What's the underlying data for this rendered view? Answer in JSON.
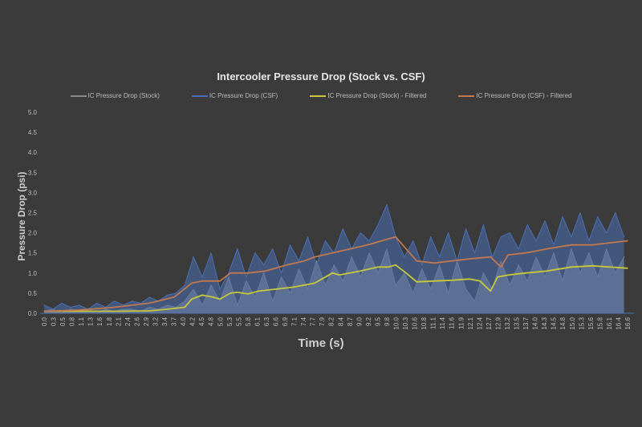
{
  "chart_data": {
    "type": "line",
    "title": "Intercooler Pressure Drop (Stock vs. CSF)",
    "xlabel": "Time (s)",
    "ylabel": "Pressure Drop (psi)",
    "ylim": [
      0,
      5
    ],
    "xlim": [
      0,
      16.6
    ],
    "yticks": [
      "0.0",
      "0.5",
      "1.0",
      "1.5",
      "2.0",
      "2.5",
      "3.0",
      "3.5",
      "4.0",
      "4.5",
      "5.0"
    ],
    "xticks": [
      "0.0",
      "0.3",
      "0.5",
      "0.8",
      "1.1",
      "1.3",
      "1.6",
      "1.8",
      "2.1",
      "2.4",
      "2.6",
      "2.9",
      "3.2",
      "3.4",
      "3.7",
      "4.0",
      "4.2",
      "4.5",
      "4.8",
      "5.0",
      "5.3",
      "5.5",
      "5.8",
      "6.1",
      "6.3",
      "6.6",
      "6.9",
      "7.1",
      "7.4",
      "7.7",
      "7.9",
      "8.2",
      "8.4",
      "8.7",
      "9.0",
      "9.2",
      "9.5",
      "9.8",
      "10.0",
      "10.3",
      "10.6",
      "10.8",
      "11.1",
      "11.4",
      "11.6",
      "11.9",
      "12.1",
      "12.4",
      "12.7",
      "12.9",
      "13.2",
      "13.5",
      "13.7",
      "14.0",
      "14.3",
      "14.5",
      "14.8",
      "15.0",
      "15.3",
      "15.6",
      "15.8",
      "16.1",
      "16.4",
      "16.6"
    ],
    "legend_position": "top",
    "grid": false,
    "series": [
      {
        "name": "IC Pressure Drop (Stock)",
        "color": "#8a8a8a",
        "x": [
          0,
          0.25,
          0.5,
          0.75,
          1,
          1.25,
          1.5,
          1.75,
          2,
          2.25,
          2.5,
          2.75,
          3,
          3.25,
          3.5,
          3.75,
          4,
          4.25,
          4.5,
          4.75,
          5,
          5.25,
          5.5,
          5.75,
          6,
          6.25,
          6.5,
          6.75,
          7,
          7.25,
          7.5,
          7.75,
          8,
          8.25,
          8.5,
          8.75,
          9,
          9.25,
          9.5,
          9.75,
          10,
          10.25,
          10.5,
          10.75,
          11,
          11.25,
          11.5,
          11.75,
          12,
          12.25,
          12.5,
          12.75,
          13,
          13.25,
          13.5,
          13.75,
          14,
          14.25,
          14.5,
          14.75,
          15,
          15.25,
          15.5,
          15.75,
          16,
          16.25,
          16.5
        ],
        "values": [
          0.05,
          0.1,
          0.0,
          0.1,
          0.05,
          0.1,
          0.0,
          0.1,
          0.05,
          0.1,
          0.1,
          0.05,
          0.15,
          0.1,
          0.2,
          0.15,
          0.3,
          0.6,
          0.2,
          0.7,
          0.3,
          0.9,
          0.2,
          0.8,
          0.4,
          1.0,
          0.3,
          0.9,
          0.5,
          1.1,
          0.6,
          1.3,
          0.7,
          1.2,
          0.8,
          1.4,
          0.9,
          1.5,
          1.0,
          1.6,
          0.7,
          1.0,
          0.5,
          1.1,
          0.6,
          1.2,
          0.5,
          1.3,
          0.6,
          0.3,
          1.0,
          0.6,
          1.3,
          0.7,
          1.2,
          0.8,
          1.4,
          0.9,
          1.5,
          0.8,
          1.6,
          1.0,
          1.5,
          0.9,
          1.6,
          1.0,
          1.4
        ]
      },
      {
        "name": "IC Pressure Drop (CSF)",
        "color": "#4a6fb5",
        "x": [
          0,
          0.25,
          0.5,
          0.75,
          1,
          1.25,
          1.5,
          1.75,
          2,
          2.25,
          2.5,
          2.75,
          3,
          3.25,
          3.5,
          3.75,
          4,
          4.25,
          4.5,
          4.75,
          5,
          5.25,
          5.5,
          5.75,
          6,
          6.25,
          6.5,
          6.75,
          7,
          7.25,
          7.5,
          7.75,
          8,
          8.25,
          8.5,
          8.75,
          9,
          9.25,
          9.5,
          9.75,
          10,
          10.25,
          10.5,
          10.75,
          11,
          11.25,
          11.5,
          11.75,
          12,
          12.25,
          12.5,
          12.75,
          13,
          13.25,
          13.5,
          13.75,
          14,
          14.25,
          14.5,
          14.75,
          15,
          15.25,
          15.5,
          15.75,
          16,
          16.25,
          16.5
        ],
        "values": [
          0.2,
          0.1,
          0.25,
          0.15,
          0.2,
          0.1,
          0.25,
          0.15,
          0.3,
          0.2,
          0.3,
          0.25,
          0.4,
          0.3,
          0.45,
          0.5,
          0.7,
          1.4,
          0.9,
          1.5,
          0.6,
          1.0,
          1.6,
          0.9,
          1.5,
          1.2,
          1.6,
          1.0,
          1.7,
          1.3,
          1.9,
          1.2,
          1.8,
          1.5,
          2.1,
          1.6,
          2.0,
          1.8,
          2.2,
          2.7,
          1.9,
          1.4,
          1.8,
          1.2,
          1.9,
          1.4,
          2.0,
          1.3,
          2.1,
          1.5,
          2.2,
          1.4,
          1.9,
          2.0,
          1.6,
          2.2,
          1.8,
          2.3,
          1.7,
          2.4,
          1.9,
          2.5,
          1.8,
          2.4,
          2.0,
          2.5,
          1.9
        ]
      },
      {
        "name": "IC Pressure Drop (Stock) - Filtered",
        "color": "#c8c83a",
        "x": [
          0,
          1,
          2,
          3,
          3.5,
          4.0,
          4.2,
          4.5,
          4.8,
          5.0,
          5.3,
          5.5,
          5.8,
          6.1,
          6.6,
          7.1,
          7.7,
          7.9,
          8.2,
          8.4,
          8.7,
          9.0,
          9.5,
          9.8,
          10.0,
          10.3,
          10.6,
          11.1,
          11.6,
          12.1,
          12.4,
          12.7,
          12.9,
          13.2,
          13.7,
          14.3,
          15.0,
          15.6,
          16.1,
          16.6
        ],
        "values": [
          0.05,
          0.05,
          0.05,
          0.06,
          0.1,
          0.15,
          0.35,
          0.45,
          0.4,
          0.35,
          0.5,
          0.52,
          0.48,
          0.55,
          0.6,
          0.65,
          0.75,
          0.85,
          1.0,
          0.95,
          1.0,
          1.05,
          1.15,
          1.15,
          1.2,
          1.0,
          0.78,
          0.8,
          0.82,
          0.85,
          0.8,
          0.55,
          0.9,
          0.95,
          1.0,
          1.05,
          1.15,
          1.18,
          1.15,
          1.12
        ]
      },
      {
        "name": "IC Pressure Drop (CSF) - Filtered",
        "color": "#c07850",
        "x": [
          0,
          1,
          2,
          3,
          3.7,
          4.2,
          4.5,
          5.0,
          5.3,
          5.8,
          6.3,
          6.9,
          7.4,
          7.7,
          8.2,
          8.7,
          9.2,
          9.8,
          10.0,
          10.3,
          10.6,
          11.1,
          11.6,
          12.1,
          12.7,
          13.0,
          13.2,
          13.7,
          14.3,
          15.0,
          15.6,
          16.1,
          16.6
        ],
        "values": [
          0.05,
          0.08,
          0.15,
          0.25,
          0.4,
          0.75,
          0.8,
          0.8,
          1.0,
          1.0,
          1.05,
          1.2,
          1.3,
          1.4,
          1.5,
          1.6,
          1.7,
          1.85,
          1.9,
          1.6,
          1.3,
          1.25,
          1.3,
          1.35,
          1.4,
          1.15,
          1.45,
          1.5,
          1.6,
          1.7,
          1.7,
          1.75,
          1.8
        ]
      }
    ]
  }
}
